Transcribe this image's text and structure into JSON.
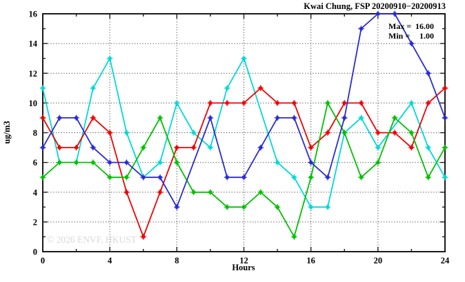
{
  "watermark": {
    "text": "© 2026 ENVF, HKUST"
  },
  "stats": {
    "max_label": "Max =",
    "max_value": "16.00",
    "min_label": "Min =",
    "min_value": "1.00"
  },
  "chart_data": {
    "type": "line",
    "title": "Kwai Chung, FSP 20200910−20200913",
    "xlabel": "Hours",
    "ylabel": "ug/m3",
    "xlim": [
      0,
      24
    ],
    "ylim": [
      0,
      16
    ],
    "x_major_ticks": [
      0,
      4,
      8,
      12,
      16,
      20,
      24
    ],
    "y_major_ticks": [
      0,
      2,
      4,
      6,
      8,
      10,
      12,
      14,
      16
    ],
    "x_minor_step": 2,
    "y_minor_step": 1,
    "grid": "dotted-at-major-ticks",
    "legend": "none",
    "x": [
      0,
      1,
      2,
      3,
      4,
      5,
      6,
      7,
      8,
      9,
      10,
      11,
      12,
      13,
      14,
      15,
      16,
      17,
      18,
      19,
      20,
      21,
      22,
      23,
      24
    ],
    "series": [
      {
        "name": "cyan",
        "color": "#00d8d8",
        "values": [
          11,
          6,
          6,
          11,
          13,
          8,
          5,
          6,
          10,
          8,
          7,
          11,
          13,
          null,
          6,
          5,
          3,
          3,
          8,
          9,
          7,
          null,
          10,
          7,
          5
        ]
      },
      {
        "name": "red",
        "color": "#f00000",
        "values": [
          9,
          7,
          7,
          9,
          8,
          4,
          1,
          4,
          7,
          7,
          10,
          10,
          10,
          11,
          10,
          10,
          7,
          8,
          10,
          10,
          8,
          8,
          7,
          10,
          11
        ]
      },
      {
        "name": "green",
        "color": "#00c000",
        "values": [
          5,
          6,
          6,
          6,
          5,
          5,
          7,
          9,
          6,
          4,
          4,
          3,
          3,
          4,
          3,
          1,
          5,
          10,
          8,
          5,
          6,
          9,
          8,
          5,
          7
        ]
      },
      {
        "name": "blue",
        "color": "#2a2ad4",
        "values": [
          7,
          9,
          9,
          7,
          6,
          6,
          5,
          5,
          3,
          null,
          9,
          5,
          5,
          7,
          9,
          9,
          6,
          5,
          9,
          15,
          16,
          16,
          14,
          12,
          9
        ]
      }
    ]
  }
}
